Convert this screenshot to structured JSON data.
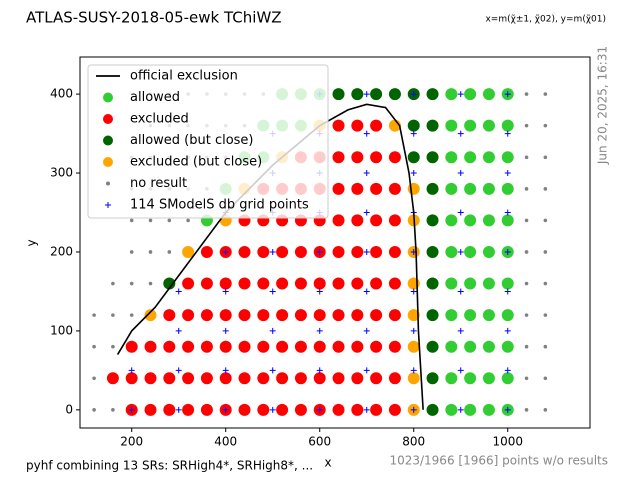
{
  "chart_data": {
    "type": "scatter",
    "title": "ATLAS-SUSY-2018-05-ewk TChiWZ",
    "axis_note": "x=m(χ̃±1, χ̃02), y=m(χ̃01)",
    "timestamp": "Jun 20, 2025, 16:31",
    "footer": "pyhf combining 13 SRs: SRHigh4*, SRHigh8*, ...",
    "missing_note": "1023/1966 [1966] points w/o results",
    "x_label": "x",
    "y_label": "y",
    "xlim": [
      90,
      1175
    ],
    "ylim": [
      -23,
      447
    ],
    "xticks": [
      200,
      400,
      600,
      800,
      1000
    ],
    "yticks": [
      0,
      100,
      200,
      300,
      400
    ],
    "legend": "upper left",
    "series": [
      {
        "name": "official exclusion",
        "color": "#000000",
        "marker": "line",
        "x": [
          170,
          200,
          250,
          300,
          400,
          500,
          600,
          660,
          700,
          740,
          770,
          790,
          800,
          805,
          810,
          820
        ],
        "y": [
          70,
          100,
          130,
          170,
          250,
          310,
          360,
          380,
          387,
          383,
          360,
          300,
          250,
          200,
          100,
          0
        ]
      },
      {
        "name": "allowed",
        "color": "#32cd32",
        "marker": "circle",
        "x": [
          880,
          920,
          960,
          1000,
          880,
          920,
          960,
          1000,
          880,
          920,
          960,
          1000,
          880,
          920,
          960,
          1000,
          880,
          920,
          960,
          1000,
          880,
          920,
          960,
          1000,
          880,
          920,
          960,
          1000,
          880,
          920,
          960,
          1000,
          880,
          920,
          960,
          1000,
          880,
          920,
          960,
          1000,
          880,
          920,
          960,
          1000,
          360,
          400,
          440,
          480,
          480,
          520,
          560,
          520,
          560,
          600
        ],
        "y": [
          0,
          0,
          0,
          0,
          40,
          40,
          40,
          40,
          80,
          80,
          80,
          80,
          120,
          120,
          120,
          120,
          160,
          160,
          160,
          160,
          200,
          200,
          200,
          200,
          240,
          240,
          240,
          240,
          280,
          280,
          280,
          280,
          320,
          320,
          320,
          320,
          360,
          360,
          360,
          360,
          400,
          400,
          400,
          400,
          240,
          280,
          320,
          320,
          360,
          360,
          360,
          400,
          400,
          400
        ]
      },
      {
        "name": "excluded",
        "color": "#ff0000",
        "marker": "circle",
        "x": [
          200,
          240,
          280,
          320,
          360,
          400,
          440,
          480,
          520,
          560,
          600,
          640,
          680,
          720,
          760,
          160,
          200,
          240,
          280,
          320,
          360,
          400,
          440,
          480,
          520,
          560,
          600,
          640,
          680,
          720,
          760,
          200,
          240,
          280,
          320,
          360,
          400,
          440,
          480,
          520,
          560,
          600,
          640,
          680,
          720,
          760,
          280,
          320,
          360,
          400,
          440,
          480,
          520,
          560,
          600,
          640,
          680,
          720,
          760,
          320,
          360,
          400,
          440,
          480,
          520,
          560,
          600,
          640,
          680,
          720,
          760,
          360,
          400,
          440,
          480,
          520,
          560,
          600,
          640,
          680,
          720,
          760,
          440,
          480,
          520,
          560,
          600,
          640,
          680,
          720,
          760,
          480,
          520,
          560,
          600,
          640,
          680,
          720,
          760,
          560,
          600,
          640,
          680,
          720,
          760,
          640,
          680,
          720
        ],
        "y": [
          0,
          0,
          0,
          0,
          0,
          0,
          0,
          0,
          0,
          0,
          0,
          0,
          0,
          0,
          0,
          40,
          40,
          40,
          40,
          40,
          40,
          40,
          40,
          40,
          40,
          40,
          40,
          40,
          40,
          40,
          40,
          80,
          80,
          80,
          80,
          80,
          80,
          80,
          80,
          80,
          80,
          80,
          80,
          80,
          80,
          80,
          120,
          120,
          120,
          120,
          120,
          120,
          120,
          120,
          120,
          120,
          120,
          120,
          120,
          160,
          160,
          160,
          160,
          160,
          160,
          160,
          160,
          160,
          160,
          160,
          160,
          200,
          200,
          200,
          200,
          200,
          200,
          200,
          200,
          200,
          200,
          200,
          240,
          240,
          240,
          240,
          240,
          240,
          240,
          240,
          240,
          280,
          280,
          280,
          280,
          280,
          280,
          280,
          280,
          320,
          320,
          320,
          320,
          320,
          320,
          360,
          360,
          360
        ]
      },
      {
        "name": "allowed (but close)",
        "color": "#006400",
        "marker": "circle",
        "x": [
          840,
          840,
          840,
          840,
          840,
          840,
          840,
          840,
          840,
          840,
          840,
          280,
          800,
          800,
          640,
          680,
          720,
          760,
          800
        ],
        "y": [
          0,
          40,
          80,
          120,
          160,
          200,
          240,
          280,
          320,
          360,
          400,
          160,
          320,
          360,
          400,
          400,
          400,
          400,
          400
        ]
      },
      {
        "name": "excluded (but close)",
        "color": "#ffa500",
        "marker": "circle",
        "x": [
          800,
          800,
          800,
          800,
          800,
          800,
          800,
          800,
          240,
          320,
          400,
          440,
          520,
          600,
          760
        ],
        "y": [
          0,
          40,
          80,
          120,
          160,
          200,
          240,
          280,
          120,
          200,
          240,
          280,
          320,
          360,
          360
        ]
      },
      {
        "name": "no result",
        "color": "#808080",
        "marker": "dot",
        "x": [
          120,
          160,
          1040,
          1080,
          120,
          1040,
          1080,
          120,
          160,
          1040,
          1080,
          120,
          160,
          200,
          1040,
          1080,
          160,
          200,
          240,
          1040,
          1080,
          200,
          240,
          280,
          1040,
          1080,
          200,
          240,
          280,
          320,
          1040,
          1080,
          200,
          240,
          280,
          320,
          360,
          1040,
          1080,
          200,
          240,
          280,
          320,
          360,
          400,
          1040,
          1080,
          240,
          280,
          320,
          360,
          400,
          440,
          1040,
          1080,
          240,
          280,
          320,
          360,
          400,
          440,
          480,
          1040,
          1080
        ],
        "y": [
          0,
          0,
          0,
          0,
          40,
          40,
          40,
          80,
          80,
          80,
          80,
          120,
          120,
          120,
          120,
          120,
          160,
          160,
          160,
          160,
          160,
          200,
          200,
          200,
          200,
          200,
          240,
          240,
          240,
          240,
          240,
          240,
          280,
          280,
          280,
          280,
          280,
          280,
          280,
          320,
          320,
          320,
          320,
          320,
          320,
          320,
          320,
          360,
          360,
          360,
          360,
          360,
          360,
          360,
          360,
          400,
          400,
          400,
          400,
          400,
          400,
          400,
          400,
          400
        ]
      },
      {
        "name": "114 SModelS db grid points",
        "color": "#0000ff",
        "marker": "plus",
        "x": [
          200,
          300,
          400,
          500,
          600,
          700,
          800,
          900,
          1000,
          200,
          300,
          400,
          500,
          600,
          700,
          800,
          900,
          1000,
          300,
          400,
          500,
          600,
          700,
          800,
          900,
          1000,
          300,
          400,
          500,
          600,
          700,
          800,
          900,
          1000,
          400,
          500,
          600,
          700,
          800,
          900,
          1000,
          400,
          500,
          600,
          700,
          800,
          900,
          1000,
          500,
          600,
          700,
          800,
          900,
          1000,
          500,
          600,
          700,
          800,
          900,
          1000,
          600,
          700,
          800,
          900,
          1000
        ],
        "y": [
          0,
          0,
          0,
          0,
          0,
          0,
          0,
          0,
          0,
          50,
          50,
          50,
          50,
          50,
          50,
          50,
          50,
          50,
          100,
          100,
          100,
          100,
          100,
          100,
          100,
          100,
          150,
          150,
          150,
          150,
          150,
          150,
          150,
          150,
          200,
          200,
          200,
          200,
          200,
          200,
          200,
          250,
          250,
          250,
          250,
          250,
          250,
          250,
          300,
          300,
          300,
          300,
          300,
          300,
          350,
          350,
          350,
          350,
          350,
          350,
          400,
          400,
          400,
          400,
          400
        ]
      }
    ]
  }
}
